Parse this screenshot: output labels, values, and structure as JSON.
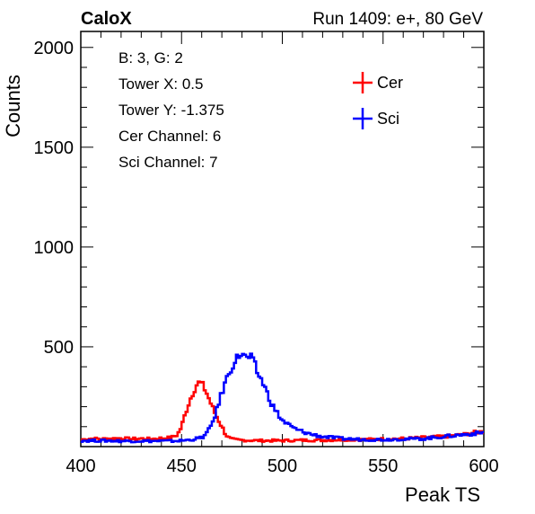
{
  "chart_data": {
    "type": "line",
    "title_left": "CaloX",
    "title_right": "Run 1409: e+, 80 GeV",
    "xlabel": "Peak TS",
    "ylabel": "Counts",
    "xlim": [
      400,
      600
    ],
    "ylim": [
      0,
      2080
    ],
    "x_ticks": [
      400,
      450,
      500,
      550,
      600
    ],
    "y_ticks": [
      500,
      1000,
      1500,
      2000
    ],
    "grid": false,
    "legend_position": "top-right",
    "info_box": [
      "B: 3, G: 2",
      "Tower X: 0.5",
      "Tower Y: -1.375",
      "Cer Channel: 6",
      "Sci Channel: 7"
    ],
    "series": [
      {
        "name": "Cer",
        "color": "#ff0000",
        "x": [
          400,
          405,
          410,
          415,
          420,
          425,
          430,
          435,
          440,
          445,
          448,
          450,
          452,
          454,
          456,
          458,
          460,
          462,
          464,
          466,
          468,
          470,
          472,
          474,
          476,
          480,
          490,
          500,
          510,
          520,
          530,
          540,
          550,
          560,
          570,
          580,
          590,
          595,
          600
        ],
        "y": [
          35,
          40,
          38,
          40,
          42,
          38,
          40,
          38,
          42,
          45,
          60,
          100,
          170,
          230,
          280,
          320,
          315,
          280,
          230,
          180,
          140,
          100,
          60,
          40,
          35,
          32,
          30,
          30,
          32,
          32,
          35,
          35,
          38,
          40,
          45,
          50,
          60,
          70,
          75
        ]
      },
      {
        "name": "Sci",
        "color": "#0000ff",
        "x": [
          400,
          410,
          420,
          430,
          440,
          445,
          450,
          455,
          460,
          462,
          464,
          466,
          468,
          470,
          472,
          474,
          476,
          478,
          480,
          482,
          484,
          486,
          488,
          490,
          492,
          494,
          496,
          498,
          500,
          503,
          506,
          510,
          515,
          520,
          530,
          540,
          550,
          560,
          570,
          580,
          590,
          600
        ],
        "y": [
          30,
          30,
          28,
          28,
          28,
          28,
          30,
          35,
          45,
          60,
          90,
          140,
          200,
          270,
          330,
          380,
          420,
          450,
          470,
          440,
          450,
          420,
          360,
          330,
          280,
          230,
          190,
          160,
          130,
          110,
          90,
          75,
          60,
          50,
          40,
          35,
          35,
          38,
          40,
          50,
          60,
          70
        ]
      }
    ]
  }
}
